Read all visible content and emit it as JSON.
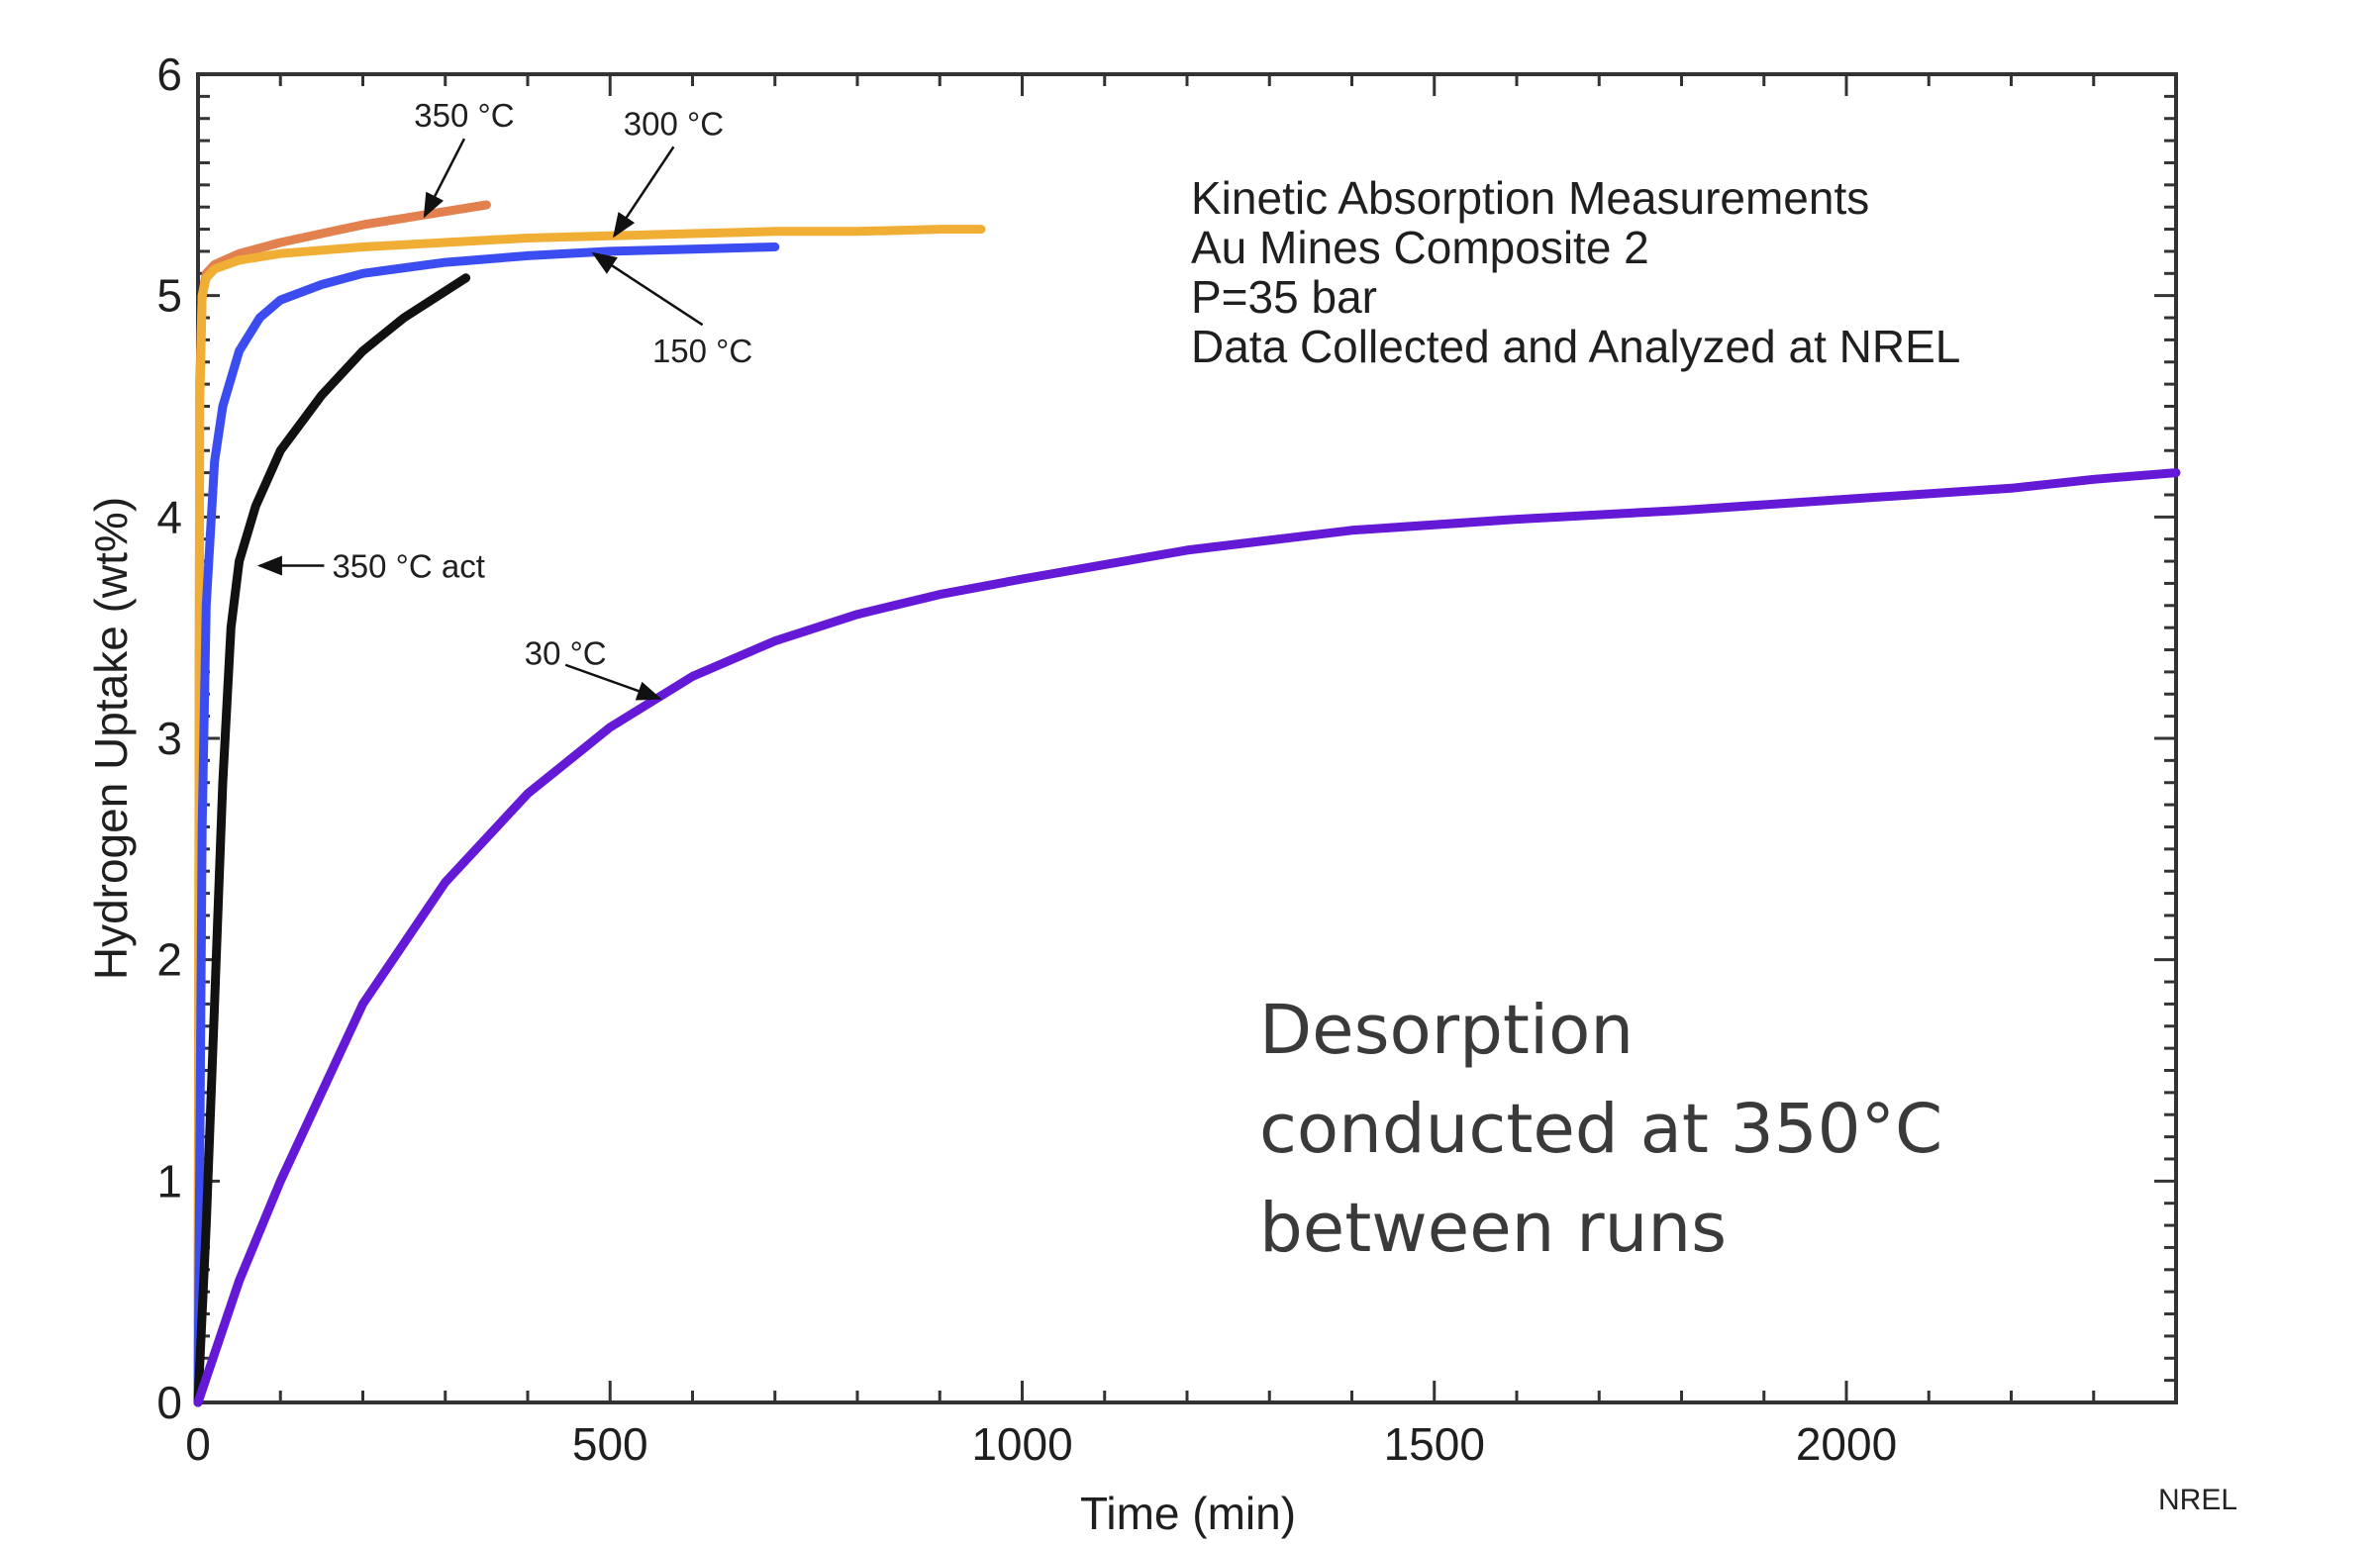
{
  "chart_data": {
    "type": "line",
    "xlabel": "Time (min)",
    "ylabel": "Hydrogen Uptake (wt%)",
    "xlim": [
      0,
      2400
    ],
    "ylim": [
      0,
      6
    ],
    "xticks": [
      "0",
      "500",
      "1000",
      "1500",
      "2000"
    ],
    "yticks": [
      "0",
      "1",
      "2",
      "3",
      "4",
      "5",
      "6"
    ],
    "grid": false,
    "info_lines": [
      "Kinetic Absorption Measurements",
      "Au Mines Composite 2",
      "P=35 bar",
      "Data Collected and Analyzed at NREL"
    ],
    "note_lines": [
      "Desorption",
      "conducted at 350°C",
      "between runs"
    ],
    "credit": "NREL",
    "series": [
      {
        "name": "350 °C",
        "color": "#e2804e",
        "x": [
          0,
          2,
          5,
          10,
          20,
          50,
          100,
          150,
          200,
          250,
          300,
          350
        ],
        "y": [
          0,
          4.6,
          5.0,
          5.1,
          5.14,
          5.19,
          5.24,
          5.28,
          5.32,
          5.35,
          5.38,
          5.41
        ]
      },
      {
        "name": "300 °C",
        "color": "#f0ae35",
        "x": [
          0,
          2,
          5,
          10,
          20,
          50,
          100,
          200,
          300,
          400,
          500,
          600,
          700,
          800,
          900,
          950
        ],
        "y": [
          0,
          4.5,
          5.0,
          5.08,
          5.12,
          5.16,
          5.19,
          5.22,
          5.24,
          5.26,
          5.27,
          5.28,
          5.29,
          5.29,
          5.3,
          5.3
        ]
      },
      {
        "name": "150 °C",
        "color": "#3b4df0",
        "x": [
          0,
          5,
          10,
          20,
          30,
          50,
          75,
          100,
          150,
          200,
          300,
          400,
          500,
          600,
          700
        ],
        "y": [
          0,
          2.6,
          3.6,
          4.25,
          4.5,
          4.75,
          4.9,
          4.98,
          5.05,
          5.1,
          5.15,
          5.18,
          5.2,
          5.21,
          5.22
        ]
      },
      {
        "name": "350 °C act",
        "color": "#111111",
        "x": [
          0,
          10,
          20,
          30,
          40,
          50,
          70,
          100,
          150,
          200,
          250,
          300,
          325
        ],
        "y": [
          0,
          0.8,
          1.8,
          2.8,
          3.5,
          3.8,
          4.05,
          4.3,
          4.55,
          4.75,
          4.9,
          5.02,
          5.08
        ]
      },
      {
        "name": "30 °C",
        "color": "#6419d6",
        "x": [
          0,
          50,
          100,
          200,
          300,
          400,
          500,
          600,
          700,
          800,
          900,
          1000,
          1200,
          1400,
          1600,
          1800,
          2000,
          2200,
          2300,
          2400
        ],
        "y": [
          0,
          0.55,
          1.0,
          1.8,
          2.35,
          2.75,
          3.05,
          3.28,
          3.44,
          3.56,
          3.65,
          3.72,
          3.85,
          3.94,
          3.99,
          4.03,
          4.08,
          4.13,
          4.17,
          4.2
        ]
      }
    ],
    "annotations": [
      {
        "text": "350 °C",
        "arrow_x": 275,
        "arrow_y": 5.36
      },
      {
        "text": "300 °C",
        "arrow_x": 505,
        "arrow_y": 5.27
      },
      {
        "text": "150 °C",
        "arrow_x": 480,
        "arrow_y": 5.19
      },
      {
        "text": "350 °C act",
        "arrow_x": 75,
        "arrow_y": 3.78
      },
      {
        "text": "30 °C",
        "arrow_x": 560,
        "arrow_y": 3.18
      }
    ]
  }
}
